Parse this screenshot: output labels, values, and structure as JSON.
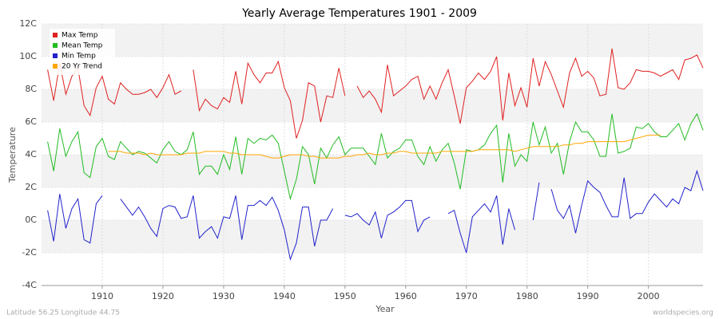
{
  "chart_data": {
    "type": "line",
    "title": "Yearly Average Temperatures 1901 - 2009",
    "xlabel": "Year",
    "ylabel": "Temperature",
    "footer_left": "Latitude 56.25 Longitude 44.75",
    "footer_right": "worldspecies.org",
    "xlim": [
      1900,
      2009
    ],
    "xticks": [
      1910,
      1920,
      1930,
      1940,
      1950,
      1960,
      1970,
      1980,
      1990,
      2000
    ],
    "ylim": [
      -4,
      12
    ],
    "yticks": [
      {
        "value": -4,
        "label": "-4C"
      },
      {
        "value": -2,
        "label": "-2C"
      },
      {
        "value": 0,
        "label": "0C"
      },
      {
        "value": 2,
        "label": "2C"
      },
      {
        "value": 4,
        "label": "4C"
      },
      {
        "value": 6,
        "label": "6C"
      },
      {
        "value": 8,
        "label": "8C"
      },
      {
        "value": 10,
        "label": "10C"
      },
      {
        "value": 12,
        "label": "12C"
      }
    ],
    "grid": true,
    "legend": "top-left",
    "x": [
      1901,
      1902,
      1903,
      1904,
      1905,
      1906,
      1907,
      1908,
      1909,
      1910,
      1911,
      1912,
      1913,
      1914,
      1915,
      1916,
      1917,
      1918,
      1919,
      1920,
      1921,
      1922,
      1923,
      1924,
      1925,
      1926,
      1927,
      1928,
      1929,
      1930,
      1931,
      1932,
      1933,
      1934,
      1935,
      1936,
      1937,
      1938,
      1939,
      1940,
      1941,
      1942,
      1943,
      1944,
      1945,
      1946,
      1947,
      1948,
      1949,
      1950,
      1951,
      1952,
      1953,
      1954,
      1955,
      1956,
      1957,
      1958,
      1959,
      1960,
      1961,
      1962,
      1963,
      1964,
      1965,
      1966,
      1967,
      1968,
      1969,
      1970,
      1971,
      1972,
      1973,
      1974,
      1975,
      1976,
      1977,
      1978,
      1979,
      1980,
      1981,
      1982,
      1983,
      1984,
      1985,
      1986,
      1987,
      1988,
      1989,
      1990,
      1991,
      1992,
      1993,
      1994,
      1995,
      1996,
      1997,
      1998,
      1999,
      2000,
      2001,
      2002,
      2003,
      2004,
      2005,
      2006,
      2007,
      2008,
      2009
    ],
    "series": [
      {
        "name": "Max Temp",
        "color": "#e02020",
        "values": [
          9.2,
          7.3,
          9.6,
          7.7,
          8.8,
          9.3,
          7.0,
          6.4,
          8.1,
          8.8,
          7.4,
          7.1,
          8.4,
          8.0,
          7.7,
          7.7,
          7.8,
          8.0,
          7.5,
          8.1,
          8.9,
          7.7,
          7.9,
          null,
          9.2,
          6.7,
          7.4,
          7.0,
          6.8,
          7.5,
          7.2,
          9.1,
          7.1,
          9.6,
          8.9,
          8.4,
          9.0,
          9.0,
          9.7,
          8.1,
          7.3,
          5.0,
          6.1,
          8.4,
          8.2,
          6.0,
          7.6,
          7.5,
          9.3,
          7.6,
          null,
          8.2,
          7.5,
          7.9,
          7.4,
          6.6,
          9.5,
          7.6,
          7.9,
          8.2,
          8.6,
          8.8,
          7.4,
          8.2,
          7.4,
          8.4,
          9.2,
          7.6,
          5.9,
          8.1,
          8.5,
          9.0,
          8.6,
          9.1,
          10.0,
          6.1,
          9.0,
          7.0,
          8.1,
          6.9,
          9.9,
          8.2,
          9.7,
          8.9,
          7.9,
          6.9,
          9.0,
          9.9,
          8.8,
          9.1,
          8.7,
          7.6,
          7.7,
          10.5,
          8.1,
          8.0,
          8.4,
          9.2,
          9.1,
          9.1,
          9.0,
          8.8,
          9.0,
          9.2,
          8.6,
          9.8,
          9.9,
          10.1,
          9.3
        ]
      },
      {
        "name": "Mean Temp",
        "color": "#22bb22",
        "values": [
          4.8,
          3.0,
          5.6,
          3.9,
          4.8,
          5.4,
          2.9,
          2.6,
          4.5,
          5.0,
          3.9,
          3.7,
          4.8,
          4.4,
          4.0,
          4.2,
          4.1,
          3.8,
          3.5,
          4.3,
          4.8,
          4.2,
          4.0,
          4.3,
          5.4,
          2.8,
          3.3,
          3.3,
          2.8,
          4.0,
          3.1,
          5.1,
          2.8,
          5.0,
          4.7,
          5.0,
          4.9,
          5.2,
          4.7,
          3.0,
          1.3,
          2.5,
          4.5,
          4.0,
          2.2,
          4.4,
          3.8,
          4.6,
          5.1,
          4.0,
          4.4,
          4.4,
          4.4,
          3.9,
          3.4,
          5.3,
          3.8,
          4.2,
          4.4,
          4.9,
          4.9,
          3.9,
          3.4,
          4.5,
          3.6,
          4.3,
          4.7,
          3.5,
          1.9,
          4.3,
          4.2,
          4.3,
          4.6,
          5.3,
          5.8,
          2.3,
          5.3,
          3.3,
          4.0,
          3.6,
          6.0,
          4.6,
          5.7,
          4.1,
          4.7,
          2.8,
          4.8,
          6.0,
          5.4,
          5.4,
          4.9,
          3.9,
          3.9,
          6.5,
          4.1,
          4.2,
          4.4,
          5.7,
          5.6,
          5.9,
          5.4,
          5.1,
          5.1,
          5.5,
          5.9,
          4.9,
          5.9,
          6.5,
          5.5
        ]
      },
      {
        "name": "Min Temp",
        "color": "#2222cc",
        "values": [
          0.6,
          -1.3,
          1.6,
          -0.5,
          0.7,
          1.3,
          -1.2,
          -1.4,
          1.0,
          1.5,
          null,
          null,
          1.3,
          0.8,
          0.3,
          0.8,
          0.2,
          -0.5,
          -1.0,
          0.7,
          0.9,
          0.8,
          0.1,
          0.2,
          1.5,
          -1.1,
          -0.7,
          -0.4,
          -1.1,
          0.2,
          0.1,
          1.5,
          -1.2,
          0.9,
          0.9,
          1.2,
          0.9,
          1.4,
          0.6,
          -0.6,
          -2.4,
          -1.4,
          0.8,
          0.8,
          -1.6,
          0.0,
          0.0,
          0.7,
          null,
          0.3,
          0.2,
          0.4,
          0.0,
          -0.3,
          0.5,
          -1.1,
          0.3,
          0.5,
          0.8,
          1.2,
          1.2,
          -0.7,
          0.0,
          0.2,
          null,
          null,
          0.4,
          0.6,
          -0.8,
          -2.0,
          0.2,
          0.6,
          1.0,
          0.5,
          1.5,
          -1.5,
          0.7,
          -0.6,
          null,
          null,
          0.0,
          2.3,
          null,
          1.9,
          0.6,
          0.1,
          0.9,
          -0.8,
          0.9,
          2.4,
          2.0,
          1.7,
          0.9,
          0.2,
          0.2,
          2.6,
          0.1,
          0.4,
          0.4,
          1.1,
          1.6,
          1.2,
          0.8,
          1.3,
          1.0,
          2.0,
          1.8,
          3.0,
          1.8
        ]
      },
      {
        "name": "20 Yr Trend",
        "color": "#ffa500",
        "values": [
          null,
          null,
          null,
          null,
          null,
          null,
          null,
          null,
          null,
          null,
          4.2,
          4.2,
          4.2,
          4.1,
          4.1,
          4.1,
          4.0,
          4.1,
          4.0,
          4.0,
          4.0,
          4.0,
          4.0,
          4.1,
          4.1,
          4.1,
          4.2,
          4.2,
          4.2,
          4.2,
          4.1,
          4.1,
          4.0,
          4.0,
          4.0,
          4.0,
          3.9,
          3.8,
          3.8,
          3.9,
          4.0,
          4.0,
          4.0,
          3.9,
          3.9,
          3.8,
          3.8,
          3.8,
          3.8,
          3.9,
          3.9,
          4.0,
          4.0,
          4.1,
          4.0,
          4.0,
          4.1,
          4.1,
          4.2,
          4.2,
          4.1,
          4.1,
          4.1,
          4.1,
          4.1,
          4.2,
          4.2,
          4.2,
          4.2,
          4.2,
          4.2,
          4.3,
          4.3,
          4.3,
          4.3,
          4.3,
          4.3,
          4.2,
          4.3,
          4.4,
          4.5,
          4.5,
          4.5,
          4.5,
          4.5,
          4.6,
          4.6,
          4.7,
          4.7,
          4.8,
          4.8,
          4.8,
          4.8,
          4.8,
          4.8,
          4.8,
          4.9,
          5.0,
          5.1,
          5.2,
          5.2,
          5.2,
          null,
          null,
          null,
          null,
          null,
          null,
          null
        ]
      }
    ]
  }
}
